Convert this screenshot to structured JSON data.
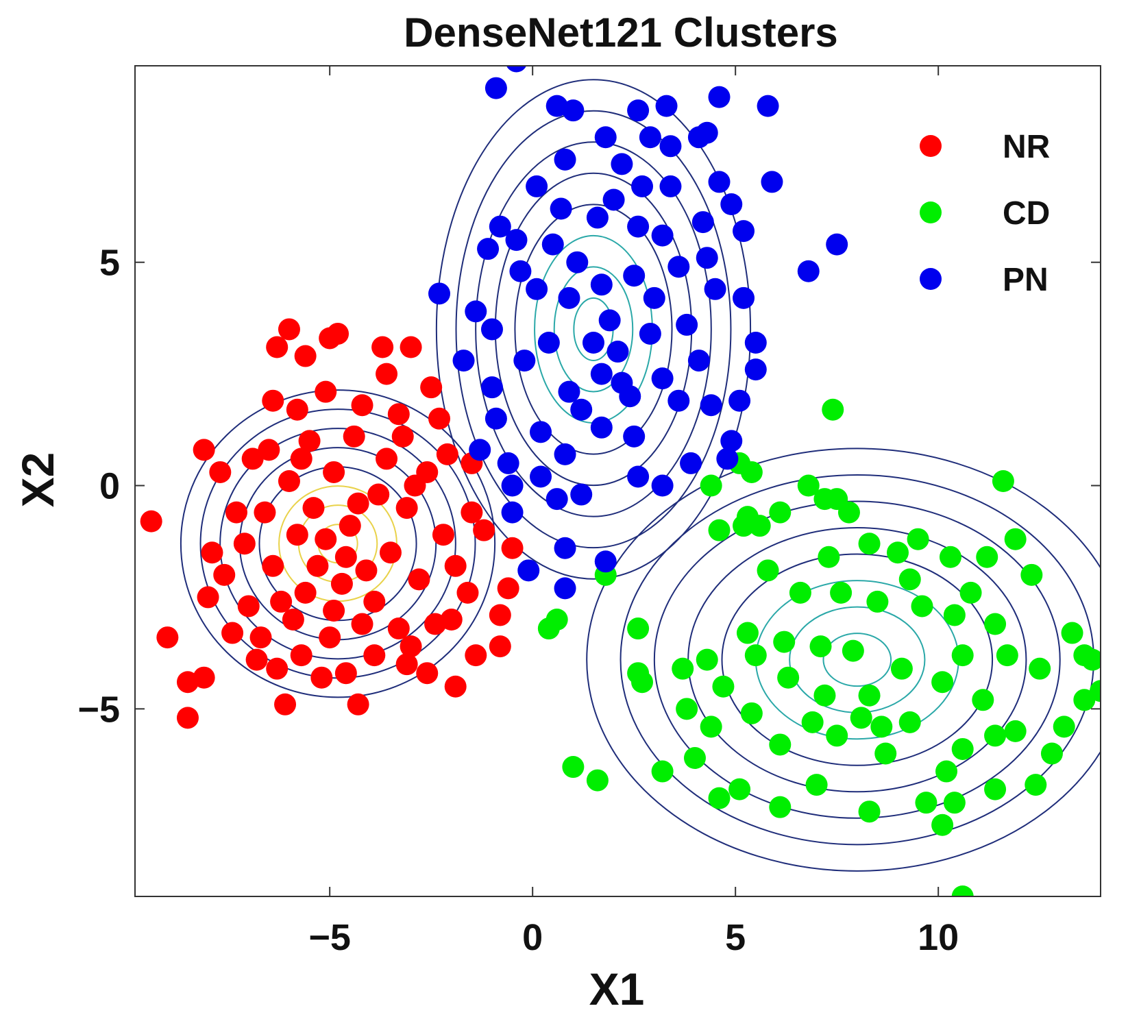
{
  "chart_data": {
    "type": "scatter",
    "title": "DenseNet121 Clusters",
    "xlabel": "X1",
    "ylabel": "X2",
    "xlim": [
      -9.8,
      14
    ],
    "ylim": [
      -9.2,
      9.4
    ],
    "xticks": [
      -5,
      0,
      5,
      10
    ],
    "yticks": [
      -5,
      0,
      5
    ],
    "xtick_labels": [
      "−5",
      "0",
      "5",
      "10"
    ],
    "ytick_labels": [
      "−5",
      "0",
      "5"
    ],
    "grid": false,
    "legend_position": "top-right",
    "series": [
      {
        "name": "NR",
        "color": "#ff0000",
        "center": [
          -4.8,
          -1.3
        ],
        "spread": [
          1.8,
          1.6
        ],
        "contour_color": "#1f2d7a",
        "contour_inner_color": "#e9d24a",
        "points": [
          [
            -9.4,
            -0.8
          ],
          [
            -9.0,
            -3.4
          ],
          [
            -8.5,
            -4.4
          ],
          [
            -8.5,
            -5.2
          ],
          [
            -8.1,
            -4.3
          ],
          [
            -8.1,
            0.8
          ],
          [
            -7.7,
            0.3
          ],
          [
            -7.3,
            -0.6
          ],
          [
            -7.6,
            -2.0
          ],
          [
            -7.0,
            -2.7
          ],
          [
            -6.8,
            -3.9
          ],
          [
            -6.3,
            -4.1
          ],
          [
            -6.1,
            -4.9
          ],
          [
            -5.7,
            -3.8
          ],
          [
            -5.2,
            -4.3
          ],
          [
            -4.6,
            -4.2
          ],
          [
            -4.3,
            -4.9
          ],
          [
            -3.9,
            -3.8
          ],
          [
            -3.1,
            -4.0
          ],
          [
            -2.6,
            -4.2
          ],
          [
            -1.9,
            -4.5
          ],
          [
            -1.4,
            -3.8
          ],
          [
            -0.8,
            -3.6
          ],
          [
            -0.8,
            -2.9
          ],
          [
            -1.6,
            -2.4
          ],
          [
            -0.6,
            -2.3
          ],
          [
            -0.5,
            -1.4
          ],
          [
            -1.9,
            -1.8
          ],
          [
            -1.5,
            -0.6
          ],
          [
            -1.5,
            0.5
          ],
          [
            -2.1,
            0.7
          ],
          [
            -2.6,
            0.3
          ],
          [
            -2.3,
            1.5
          ],
          [
            -2.5,
            2.2
          ],
          [
            -3.3,
            1.6
          ],
          [
            -3.6,
            2.5
          ],
          [
            -4.2,
            1.8
          ],
          [
            -5.1,
            2.1
          ],
          [
            -5.8,
            1.7
          ],
          [
            -6.4,
            1.9
          ],
          [
            -6.5,
            0.8
          ],
          [
            -6.3,
            3.1
          ],
          [
            -6.0,
            3.5
          ],
          [
            -5.6,
            2.9
          ],
          [
            -5.0,
            3.3
          ],
          [
            -4.8,
            3.4
          ],
          [
            -3.7,
            3.1
          ],
          [
            -3.0,
            3.1
          ],
          [
            -4.9,
            0.3
          ],
          [
            -5.4,
            -0.5
          ],
          [
            -5.1,
            -1.2
          ],
          [
            -4.6,
            -1.6
          ],
          [
            -4.3,
            -0.4
          ],
          [
            -4.7,
            -2.2
          ],
          [
            -5.6,
            -2.4
          ],
          [
            -3.9,
            -2.6
          ],
          [
            -3.5,
            -1.5
          ],
          [
            -3.1,
            -0.5
          ],
          [
            -2.8,
            -2.1
          ],
          [
            -3.3,
            -3.2
          ],
          [
            -4.2,
            -3.1
          ],
          [
            -5.0,
            -3.4
          ],
          [
            -5.9,
            -3.0
          ],
          [
            -6.4,
            -1.8
          ],
          [
            -6.6,
            -0.6
          ],
          [
            -6.0,
            0.1
          ],
          [
            -7.1,
            -1.3
          ],
          [
            -6.9,
            0.6
          ],
          [
            -5.5,
            1.0
          ],
          [
            -4.4,
            1.1
          ],
          [
            -3.6,
            0.6
          ],
          [
            -2.9,
            0.0
          ],
          [
            -2.2,
            -1.1
          ],
          [
            -2.4,
            -3.1
          ],
          [
            -3.0,
            -3.6
          ],
          [
            -4.5,
            -0.9
          ],
          [
            -5.3,
            -1.8
          ],
          [
            -4.1,
            -1.9
          ],
          [
            -5.8,
            -1.1
          ],
          [
            -6.2,
            -2.6
          ],
          [
            -7.4,
            -3.3
          ],
          [
            -7.9,
            -1.5
          ],
          [
            -8.0,
            -2.5
          ],
          [
            -3.8,
            -0.2
          ],
          [
            -4.9,
            -2.8
          ],
          [
            -5.7,
            0.6
          ],
          [
            -3.2,
            1.1
          ],
          [
            -2.0,
            -3.0
          ],
          [
            -6.7,
            -3.4
          ],
          [
            -1.2,
            -1.0
          ]
        ]
      },
      {
        "name": "CD",
        "color": "#00ee00",
        "center": [
          8.0,
          -3.9
        ],
        "spread": [
          3.1,
          2.2
        ],
        "contour_color": "#1f2d7a",
        "contour_inner_color": "#2aa8a8",
        "points": [
          [
            0.4,
            -3.2
          ],
          [
            0.6,
            -3.0
          ],
          [
            1.8,
            -2.0
          ],
          [
            1.0,
            -6.3
          ],
          [
            1.6,
            -6.6
          ],
          [
            5.3,
            -0.7
          ],
          [
            5.6,
            -0.9
          ],
          [
            5.4,
            0.3
          ],
          [
            5.2,
            -0.9
          ],
          [
            5.1,
            0.5
          ],
          [
            4.6,
            -1.0
          ],
          [
            4.4,
            0.0
          ],
          [
            7.4,
            1.7
          ],
          [
            6.8,
            0.0
          ],
          [
            7.2,
            -0.3
          ],
          [
            7.5,
            -0.3
          ],
          [
            6.1,
            -0.6
          ],
          [
            7.8,
            -0.6
          ],
          [
            8.3,
            -1.3
          ],
          [
            9.0,
            -1.5
          ],
          [
            10.3,
            -1.6
          ],
          [
            11.2,
            -1.6
          ],
          [
            11.9,
            -1.2
          ],
          [
            11.6,
            0.1
          ],
          [
            12.3,
            -2.0
          ],
          [
            13.3,
            -3.3
          ],
          [
            13.6,
            -3.8
          ],
          [
            14.0,
            -4.6
          ],
          [
            13.6,
            -4.8
          ],
          [
            13.1,
            -5.4
          ],
          [
            12.8,
            -6.0
          ],
          [
            12.4,
            -6.7
          ],
          [
            11.4,
            -6.8
          ],
          [
            10.2,
            -6.4
          ],
          [
            10.4,
            -7.1
          ],
          [
            9.7,
            -7.1
          ],
          [
            8.3,
            -7.3
          ],
          [
            7.0,
            -6.7
          ],
          [
            6.1,
            -7.2
          ],
          [
            4.6,
            -7.0
          ],
          [
            5.1,
            -6.8
          ],
          [
            3.2,
            -6.4
          ],
          [
            4.0,
            -6.1
          ],
          [
            4.4,
            -5.4
          ],
          [
            3.7,
            -4.1
          ],
          [
            3.8,
            -5.0
          ],
          [
            2.6,
            -4.2
          ],
          [
            2.7,
            -4.4
          ],
          [
            2.6,
            -3.2
          ],
          [
            4.3,
            -3.9
          ],
          [
            4.7,
            -4.5
          ],
          [
            5.3,
            -3.3
          ],
          [
            5.5,
            -3.8
          ],
          [
            6.2,
            -3.5
          ],
          [
            7.1,
            -3.6
          ],
          [
            7.9,
            -3.7
          ],
          [
            7.6,
            -2.4
          ],
          [
            8.5,
            -2.6
          ],
          [
            9.3,
            -2.1
          ],
          [
            9.6,
            -2.7
          ],
          [
            10.4,
            -2.9
          ],
          [
            10.8,
            -2.4
          ],
          [
            11.4,
            -3.1
          ],
          [
            11.7,
            -3.8
          ],
          [
            10.6,
            -3.8
          ],
          [
            10.1,
            -4.4
          ],
          [
            11.1,
            -4.8
          ],
          [
            11.4,
            -5.6
          ],
          [
            10.6,
            -5.9
          ],
          [
            9.3,
            -5.3
          ],
          [
            8.6,
            -5.4
          ],
          [
            8.1,
            -5.2
          ],
          [
            7.2,
            -4.7
          ],
          [
            6.9,
            -5.3
          ],
          [
            6.1,
            -5.8
          ],
          [
            5.4,
            -5.1
          ],
          [
            7.5,
            -5.6
          ],
          [
            8.3,
            -4.7
          ],
          [
            9.1,
            -4.1
          ],
          [
            6.6,
            -2.4
          ],
          [
            5.8,
            -1.9
          ],
          [
            7.3,
            -1.6
          ],
          [
            10.1,
            -7.6
          ],
          [
            10.6,
            -9.2
          ],
          [
            12.5,
            -4.1
          ],
          [
            13.8,
            -3.9
          ],
          [
            9.5,
            -1.2
          ],
          [
            11.9,
            -5.5
          ],
          [
            6.3,
            -4.3
          ],
          [
            8.7,
            -6.0
          ]
        ]
      },
      {
        "name": "PN",
        "color": "#0000ee",
        "center": [
          1.5,
          3.5
        ],
        "spread": [
          1.8,
          2.6
        ],
        "contour_color": "#1f2d7a",
        "contour_inner_color": "#2aa8a8",
        "points": [
          [
            -0.4,
            9.5
          ],
          [
            -0.9,
            8.9
          ],
          [
            0.6,
            8.5
          ],
          [
            1.0,
            8.4
          ],
          [
            4.6,
            8.7
          ],
          [
            5.8,
            8.5
          ],
          [
            2.6,
            8.4
          ],
          [
            3.3,
            8.5
          ],
          [
            1.8,
            7.8
          ],
          [
            2.9,
            7.8
          ],
          [
            3.4,
            7.6
          ],
          [
            4.1,
            7.8
          ],
          [
            4.3,
            7.9
          ],
          [
            0.8,
            7.3
          ],
          [
            2.2,
            7.2
          ],
          [
            2.7,
            6.7
          ],
          [
            3.4,
            6.7
          ],
          [
            5.9,
            6.8
          ],
          [
            4.6,
            6.8
          ],
          [
            0.1,
            6.7
          ],
          [
            -0.8,
            5.8
          ],
          [
            -1.1,
            5.3
          ],
          [
            -0.4,
            5.5
          ],
          [
            0.7,
            6.2
          ],
          [
            1.6,
            6.0
          ],
          [
            2.6,
            5.8
          ],
          [
            3.2,
            5.6
          ],
          [
            4.2,
            5.9
          ],
          [
            5.2,
            5.7
          ],
          [
            4.9,
            6.3
          ],
          [
            7.5,
            5.4
          ],
          [
            6.8,
            4.8
          ],
          [
            -2.3,
            4.3
          ],
          [
            -1.4,
            3.9
          ],
          [
            -1.0,
            3.5
          ],
          [
            0.1,
            4.4
          ],
          [
            0.9,
            4.2
          ],
          [
            1.9,
            3.7
          ],
          [
            2.5,
            4.7
          ],
          [
            3.6,
            4.9
          ],
          [
            4.5,
            4.4
          ],
          [
            5.2,
            4.2
          ],
          [
            5.5,
            3.2
          ],
          [
            5.5,
            2.6
          ],
          [
            -1.7,
            2.8
          ],
          [
            -1.0,
            2.2
          ],
          [
            -0.9,
            1.5
          ],
          [
            -1.3,
            0.8
          ],
          [
            -0.6,
            0.5
          ],
          [
            0.2,
            1.2
          ],
          [
            0.9,
            2.1
          ],
          [
            1.7,
            2.5
          ],
          [
            2.4,
            2.0
          ],
          [
            3.2,
            2.4
          ],
          [
            3.6,
            1.9
          ],
          [
            4.4,
            1.8
          ],
          [
            4.9,
            1.0
          ],
          [
            4.8,
            0.6
          ],
          [
            2.5,
            1.1
          ],
          [
            1.7,
            1.3
          ],
          [
            0.8,
            0.7
          ],
          [
            0.2,
            0.2
          ],
          [
            -0.5,
            0.0
          ],
          [
            -0.5,
            -0.6
          ],
          [
            0.6,
            -0.3
          ],
          [
            1.2,
            -0.2
          ],
          [
            2.6,
            0.2
          ],
          [
            3.2,
            0.0
          ],
          [
            1.2,
            1.7
          ],
          [
            2.1,
            3.0
          ],
          [
            2.9,
            3.4
          ],
          [
            3.8,
            3.6
          ],
          [
            4.1,
            2.8
          ],
          [
            1.5,
            3.2
          ],
          [
            0.4,
            3.2
          ],
          [
            -0.2,
            2.8
          ],
          [
            1.1,
            5.0
          ],
          [
            1.7,
            4.5
          ],
          [
            3.0,
            4.2
          ],
          [
            4.3,
            5.1
          ],
          [
            -0.1,
            -1.9
          ],
          [
            0.8,
            -1.4
          ],
          [
            0.8,
            -2.3
          ],
          [
            1.8,
            -1.7
          ],
          [
            2.2,
            2.3
          ],
          [
            0.5,
            5.4
          ],
          [
            -0.3,
            4.8
          ],
          [
            3.9,
            0.5
          ],
          [
            2.0,
            6.4
          ],
          [
            5.1,
            1.9
          ]
        ]
      }
    ]
  }
}
